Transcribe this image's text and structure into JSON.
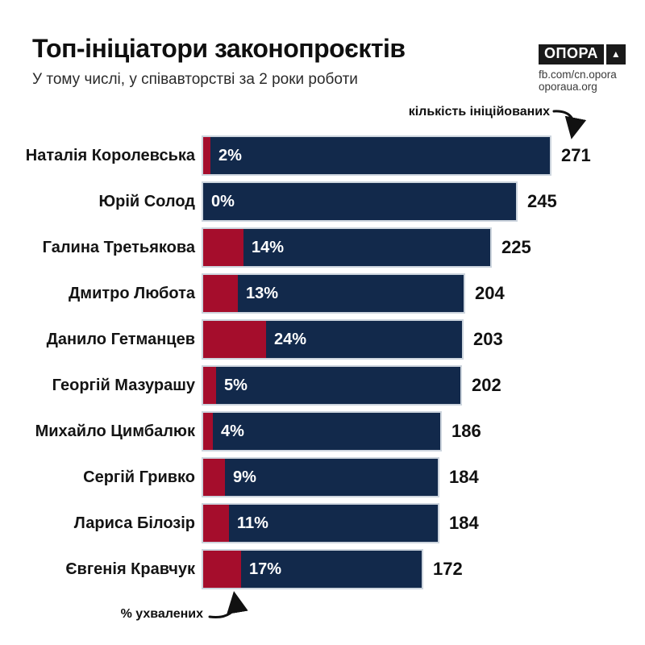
{
  "header": {
    "title": "Топ-ініціатори законопроєктів",
    "subtitle": "У тому числі, у співавторстві за 2 роки роботи"
  },
  "logo": {
    "name": "ОПОРА",
    "triangle": "▲",
    "lines": [
      "fb.com/cn.opora",
      "oporaua.org"
    ]
  },
  "annotations": {
    "top": "кількість ініційованих",
    "bottom": "% ухвалених"
  },
  "colors": {
    "bar_primary": "#12294b",
    "bar_accent": "#a50d2c",
    "bar_border": "#cdd5de",
    "text": "#141414",
    "percent_text": "#ffffff",
    "background": "#ffffff"
  },
  "chart_data": {
    "type": "bar",
    "orientation": "horizontal",
    "title": "Топ-ініціатори законопроєктів",
    "subtitle": "У тому числі, у співавторстві за 2 роки роботи",
    "legend_position": "annotations",
    "grid": false,
    "xlim": [
      0,
      271
    ],
    "categories": [
      "Наталія Королевська",
      "Юрій Солод",
      "Галина Третьякова",
      "Дмитро Любота",
      "Данило Гетманцев",
      "Георгій Мазурашу",
      "Михайло Цимбалюк",
      "Сергій Гривко",
      "Лариса Білозір",
      "Євгенія Кравчук"
    ],
    "series": [
      {
        "name": "кількість ініційованих",
        "values": [
          271,
          245,
          225,
          204,
          203,
          202,
          186,
          184,
          184,
          172
        ]
      },
      {
        "name": "% ухвалених",
        "unit": "%",
        "values": [
          2,
          0,
          14,
          13,
          24,
          5,
          4,
          9,
          11,
          17
        ]
      }
    ]
  }
}
